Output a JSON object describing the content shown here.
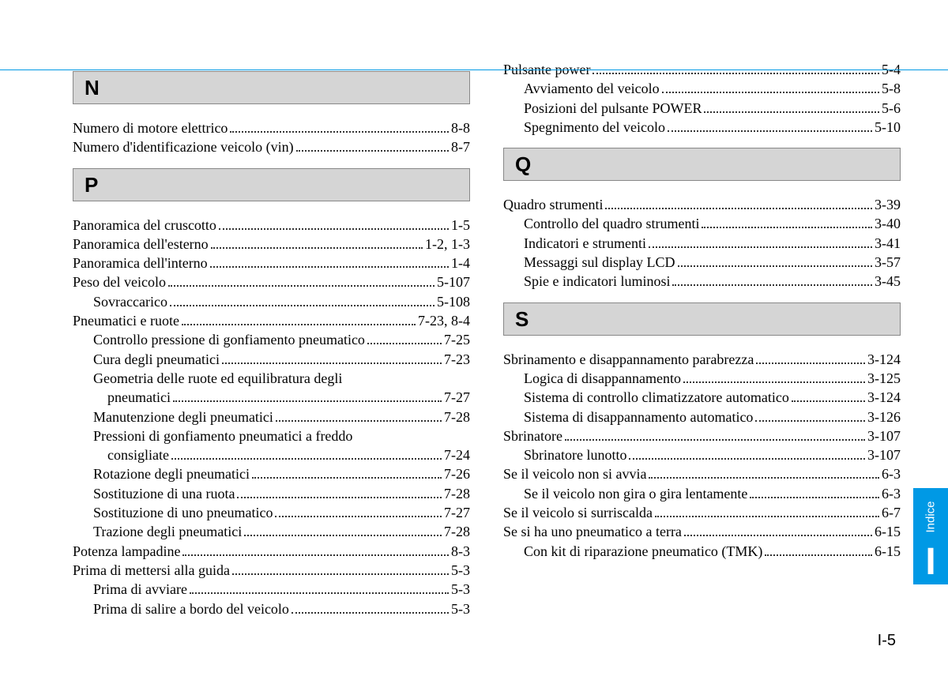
{
  "page_number": "I-5",
  "side_tab": {
    "label": "Indice",
    "letter": "I",
    "bg": "#0099e5",
    "color": "#ffffff"
  },
  "rule_color": "#0099e5",
  "header_bg": "#d5d5d5",
  "left": {
    "sections": [
      {
        "letter": "N",
        "entries": [
          {
            "label": "Numero di motore elettrico",
            "page": "8-8",
            "sub": false
          },
          {
            "label": "Numero d'identificazione veicolo (vin)",
            "page": "8-7",
            "sub": false
          }
        ]
      },
      {
        "letter": "P",
        "entries": [
          {
            "label": "Panoramica del cruscotto",
            "page": "1-5",
            "sub": false
          },
          {
            "label": "Panoramica dell'esterno",
            "page": "1-2, 1-3",
            "sub": false
          },
          {
            "label": "Panoramica dell'interno",
            "page": "1-4",
            "sub": false
          },
          {
            "label": "Peso del veicolo",
            "page": "5-107",
            "sub": false
          },
          {
            "label": "Sovraccarico",
            "page": "5-108",
            "sub": true
          },
          {
            "label": "Pneumatici e ruote",
            "page": "7-23, 8-4",
            "sub": false
          },
          {
            "label": "Controllo pressione di gonfiamento pneumatico",
            "page": "7-25",
            "sub": true
          },
          {
            "label": "Cura degli pneumatici",
            "page": "7-23",
            "sub": true
          },
          {
            "label_a": "Geometria delle ruote ed equilibratura degli",
            "label_b": "pneumatici",
            "page": "7-27",
            "sub": true,
            "wrap": true
          },
          {
            "label": "Manutenzione degli pneumatici",
            "page": "7-28",
            "sub": true
          },
          {
            "label_a": "Pressioni di gonfiamento pneumatici a freddo",
            "label_b": "consigliate",
            "page": "7-24",
            "sub": true,
            "wrap": true
          },
          {
            "label": "Rotazione degli pneumatici",
            "page": "7-26",
            "sub": true
          },
          {
            "label": "Sostituzione di una ruota",
            "page": "7-28",
            "sub": true
          },
          {
            "label": "Sostituzione di uno pneumatico",
            "page": "7-27",
            "sub": true
          },
          {
            "label": "Trazione degli pneumatici",
            "page": "7-28",
            "sub": true
          },
          {
            "label": "Potenza lampadine",
            "page": "8-3",
            "sub": false
          },
          {
            "label": "Prima di mettersi alla guida",
            "page": "5-3",
            "sub": false
          },
          {
            "label": "Prima di avviare",
            "page": "5-3",
            "sub": true
          },
          {
            "label": "Prima di salire a bordo del veicolo",
            "page": "5-3",
            "sub": true
          }
        ]
      }
    ]
  },
  "right": {
    "pre_entries": [
      {
        "label": "Pulsante power",
        "page": "5-4",
        "sub": false
      },
      {
        "label": "Avviamento del veicolo",
        "page": "5-8",
        "sub": true
      },
      {
        "label": "Posizioni del pulsante POWER",
        "page": "5-6",
        "sub": true
      },
      {
        "label": "Spegnimento del veicolo",
        "page": "5-10",
        "sub": true
      }
    ],
    "sections": [
      {
        "letter": "Q",
        "entries": [
          {
            "label": "Quadro strumenti",
            "page": "3-39",
            "sub": false
          },
          {
            "label": "Controllo del quadro strumenti",
            "page": "3-40",
            "sub": true
          },
          {
            "label": "Indicatori e strumenti",
            "page": "3-41",
            "sub": true
          },
          {
            "label": "Messaggi sul display LCD",
            "page": "3-57",
            "sub": true
          },
          {
            "label": "Spie e indicatori luminosi",
            "page": "3-45",
            "sub": true
          }
        ]
      },
      {
        "letter": "S",
        "entries": [
          {
            "label": "Sbrinamento e disappannamento parabrezza",
            "page": "3-124",
            "sub": false
          },
          {
            "label": "Logica di disappannamento",
            "page": "3-125",
            "sub": true
          },
          {
            "label": "Sistema di controllo climatizzatore automatico",
            "page": "3-124",
            "sub": true
          },
          {
            "label": "Sistema di disappannamento automatico",
            "page": "3-126",
            "sub": true
          },
          {
            "label": "Sbrinatore",
            "page": "3-107",
            "sub": false
          },
          {
            "label": "Sbrinatore lunotto",
            "page": "3-107",
            "sub": true
          },
          {
            "label": "Se il veicolo non si avvia",
            "page": "6-3",
            "sub": false
          },
          {
            "label": "Se il veicolo non gira o gira lentamente",
            "page": "6-3",
            "sub": true
          },
          {
            "label": "Se il veicolo si surriscalda",
            "page": "6-7",
            "sub": false
          },
          {
            "label": "Se si ha uno pneumatico a terra",
            "page": "6-15",
            "sub": false
          },
          {
            "label": "Con kit di riparazione pneumatico (TMK)",
            "page": "6-15",
            "sub": true
          }
        ]
      }
    ]
  }
}
